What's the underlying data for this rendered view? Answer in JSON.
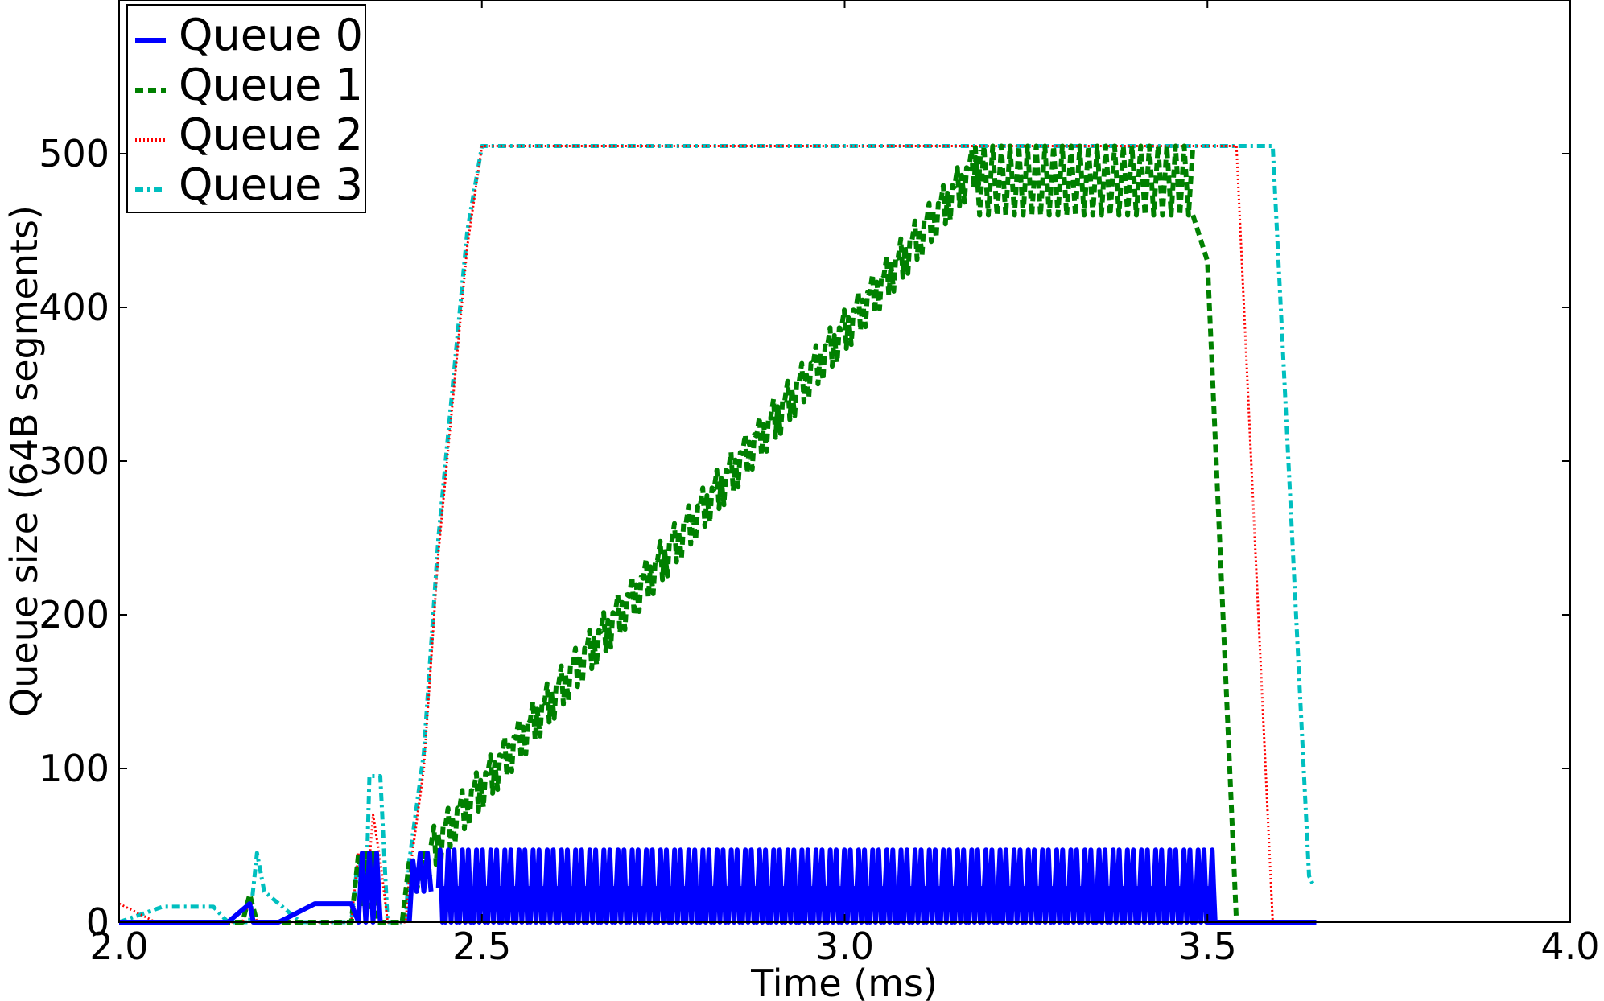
{
  "chart_data": {
    "type": "line",
    "title": "",
    "xlabel": "Time (ms)",
    "ylabel": "Queue size (64B segments)",
    "xlim": [
      2.0,
      4.0
    ],
    "ylim": [
      0,
      600
    ],
    "xticks": [
      2.0,
      2.5,
      3.0,
      3.5,
      4.0
    ],
    "xtick_labels": [
      "2.0",
      "2.5",
      "3.0",
      "3.5",
      "4.0"
    ],
    "yticks": [
      0,
      100,
      200,
      300,
      400,
      500
    ],
    "ytick_labels": [
      "0",
      "100",
      "200",
      "300",
      "400",
      "500"
    ],
    "grid": false,
    "legend_position": "top-left",
    "series": [
      {
        "name": "Queue 0",
        "color": "#0000ff",
        "style": "solid",
        "segments": [
          [
            [
              2.0,
              0
            ],
            [
              2.15,
              0
            ],
            [
              2.18,
              12
            ],
            [
              2.185,
              0
            ],
            [
              2.22,
              0
            ],
            [
              2.27,
              12
            ],
            [
              2.32,
              12
            ],
            [
              2.33,
              0
            ],
            [
              2.335,
              45
            ],
            [
              2.34,
              0
            ],
            [
              2.345,
              45
            ],
            [
              2.35,
              0
            ],
            [
              2.355,
              45
            ],
            [
              2.36,
              0
            ]
          ],
          [
            [
              2.4,
              0
            ],
            [
              2.405,
              40
            ],
            [
              2.41,
              20
            ],
            [
              2.415,
              45
            ],
            [
              2.42,
              20
            ],
            [
              2.425,
              45
            ],
            [
              2.43,
              20
            ]
          ]
        ],
        "burst": {
          "start": 2.44,
          "end": 3.497,
          "base": 22,
          "peak": 47,
          "period": 0.0195,
          "tail": [
            [
              3.497,
              22
            ],
            [
              3.5,
              0
            ],
            [
              3.65,
              0
            ]
          ]
        }
      },
      {
        "name": "Queue 1",
        "color": "#008000",
        "style": "dashed",
        "segments": [
          [
            [
              2.0,
              0
            ],
            [
              2.17,
              0
            ],
            [
              2.18,
              18
            ],
            [
              2.19,
              0
            ],
            [
              2.32,
              0
            ],
            [
              2.33,
              45
            ],
            [
              2.335,
              10
            ],
            [
              2.34,
              45
            ],
            [
              2.345,
              10
            ],
            [
              2.35,
              45
            ],
            [
              2.355,
              0
            ],
            [
              2.39,
              0
            ],
            [
              2.4,
              40
            ],
            [
              2.41,
              20
            ],
            [
              2.42,
              45
            ],
            [
              2.43,
              30
            ]
          ]
        ],
        "ramp": {
          "start": 2.43,
          "end": 3.18,
          "y0": 50,
          "y1": 490,
          "osc": 25,
          "period": 0.0195
        },
        "plateau": {
          "start": 3.18,
          "end": 3.48,
          "high": 505,
          "low": 460
        },
        "tail": [
          [
            3.48,
            460
          ],
          [
            3.5,
            430
          ],
          [
            3.54,
            0
          ],
          [
            3.65,
            0
          ]
        ]
      },
      {
        "name": "Queue 2",
        "color": "#ff0000",
        "style": "dotted",
        "points": [
          [
            2.0,
            12
          ],
          [
            2.03,
            5
          ],
          [
            2.05,
            0
          ],
          [
            2.17,
            0
          ],
          [
            2.18,
            15
          ],
          [
            2.19,
            0
          ],
          [
            2.32,
            0
          ],
          [
            2.33,
            45
          ],
          [
            2.34,
            10
          ],
          [
            2.35,
            70
          ],
          [
            2.36,
            40
          ],
          [
            2.37,
            0
          ],
          [
            2.395,
            0
          ],
          [
            2.4,
            30
          ],
          [
            2.42,
            100
          ],
          [
            2.44,
            240
          ],
          [
            2.46,
            340
          ],
          [
            2.48,
            440
          ],
          [
            2.5,
            505
          ],
          [
            3.54,
            505
          ],
          [
            3.59,
            0
          ],
          [
            3.65,
            0
          ]
        ]
      },
      {
        "name": "Queue 3",
        "color": "#00bfbf",
        "style": "dashdot",
        "points": [
          [
            2.0,
            0
          ],
          [
            2.06,
            10
          ],
          [
            2.13,
            10
          ],
          [
            2.15,
            0
          ],
          [
            2.18,
            0
          ],
          [
            2.19,
            45
          ],
          [
            2.2,
            20
          ],
          [
            2.25,
            0
          ],
          [
            2.32,
            0
          ],
          [
            2.33,
            45
          ],
          [
            2.34,
            10
          ],
          [
            2.345,
            95
          ],
          [
            2.36,
            95
          ],
          [
            2.37,
            0
          ],
          [
            2.395,
            0
          ],
          [
            2.4,
            40
          ],
          [
            2.42,
            110
          ],
          [
            2.44,
            250
          ],
          [
            2.46,
            350
          ],
          [
            2.48,
            450
          ],
          [
            2.5,
            505
          ],
          [
            3.59,
            505
          ],
          [
            3.64,
            30
          ],
          [
            3.645,
            25
          ]
        ]
      }
    ]
  }
}
